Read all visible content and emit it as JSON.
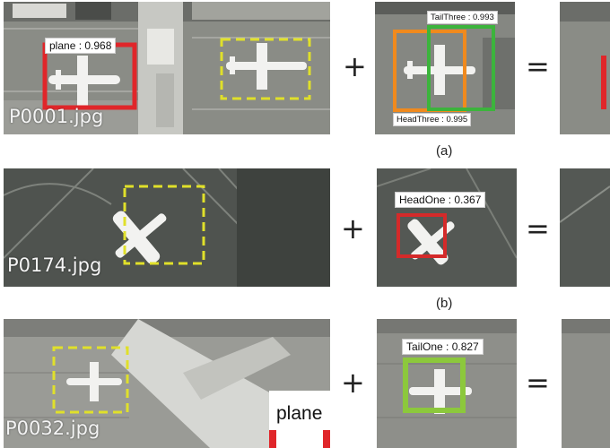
{
  "row_a": {
    "filename": "P0001.jpg",
    "detection_label": "plane : 0.968",
    "tail_label": "TailThree : 0.993",
    "head_label": "HeadThree : 0.995",
    "caption": "(a)"
  },
  "row_b": {
    "filename": "P0174.jpg",
    "head_label": "HeadOne : 0.367",
    "caption": "(b)"
  },
  "row_c": {
    "filename": "P0032.jpg",
    "tail_label": "TailOne : 0.827",
    "plane_label": "plane"
  },
  "operators": {
    "plus": "+",
    "equals": "="
  },
  "colors": {
    "plane_box": "#e0262a",
    "proposal_box": "#e0e02a",
    "head_box_a": "#f08a1e",
    "tail_box_a": "#3cb43c",
    "head_box_b": "#d42a2a",
    "tail_box_c": "#8cc83c"
  }
}
